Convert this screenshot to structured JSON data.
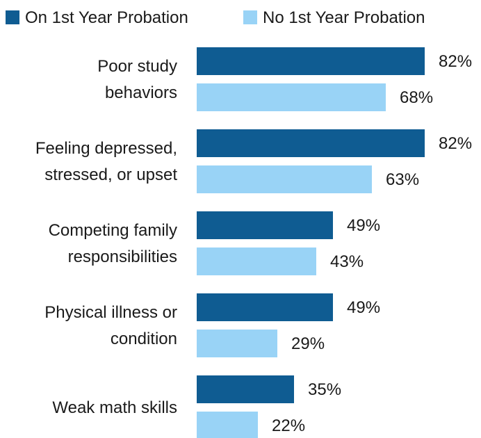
{
  "colors": {
    "series_0": "#0F5C92",
    "series_1": "#99D3F6"
  },
  "chart_data": {
    "type": "bar",
    "orientation": "horizontal",
    "title": "",
    "xlabel": "",
    "ylabel": "",
    "xlim": [
      0,
      100
    ],
    "grid": false,
    "legend_position": "top-left",
    "categories": [
      [
        "Poor study",
        "behaviors"
      ],
      [
        "Feeling depressed,",
        "stressed, or upset"
      ],
      [
        "Competing family",
        "responsibilities"
      ],
      [
        "Physical illness or",
        "condition"
      ],
      [
        "Weak math skills"
      ]
    ],
    "series": [
      {
        "name": "On 1st Year Probation",
        "values": [
          82,
          82,
          49,
          49,
          35
        ],
        "labels": [
          "82%",
          "82%",
          "49%",
          "49%",
          "35%"
        ]
      },
      {
        "name": "No 1st Year Probation",
        "values": [
          68,
          63,
          43,
          29,
          22
        ],
        "labels": [
          "68%",
          "63%",
          "43%",
          "29%",
          "22%"
        ]
      }
    ]
  }
}
